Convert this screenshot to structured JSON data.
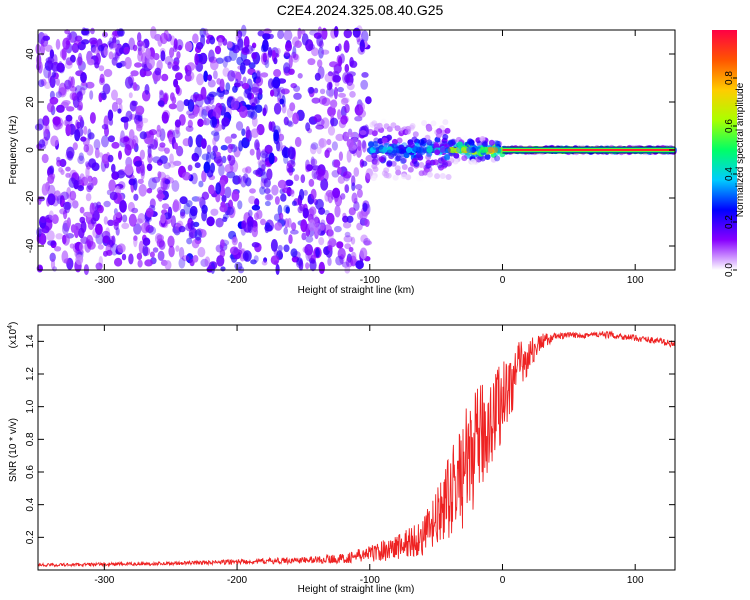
{
  "page": {
    "title": "C2E4.2024.325.08.40.G25"
  },
  "chart_data": [
    {
      "type": "heatmap",
      "title": "C2E4.2024.325.08.40.G25",
      "xlabel": "Height of straight line (km)",
      "ylabel": "Frequency (Hz)",
      "xlim": [
        -350,
        130
      ],
      "ylim": [
        -50,
        50
      ],
      "x_ticks": [
        -300,
        -200,
        -100,
        0,
        100
      ],
      "y_ticks": [
        -40,
        -20,
        0,
        20,
        40
      ],
      "colorbar": {
        "label": "Normalized spectral amplitude",
        "range": [
          0,
          1
        ],
        "ticks": [
          "0.0",
          "0.2",
          "0.4",
          "0.6",
          "0.8"
        ],
        "tick_values": [
          0.0,
          0.2,
          0.4,
          0.6,
          0.8
        ],
        "colors": [
          "#ffffff",
          "#8800ff",
          "#0000ff",
          "#00ccff",
          "#00ff66",
          "#aaff00",
          "#ffcc00",
          "#ff5500",
          "#ff0044"
        ]
      },
      "band": {
        "x_ranges": [
          [
            -350,
            -240
          ],
          [
            -240,
            -150
          ],
          [
            -150,
            -100
          ],
          [
            -100,
            -40
          ],
          [
            -40,
            0
          ],
          [
            0,
            130
          ]
        ],
        "freq_halfwidth_hz": [
          50,
          50,
          50,
          12,
          5,
          1
        ],
        "peak_amplitude": [
          0.2,
          0.25,
          0.2,
          0.45,
          0.85,
          0.95
        ]
      },
      "line": {
        "frequency_hz": 0,
        "x_range": [
          0,
          130
        ]
      }
    },
    {
      "type": "line",
      "xlabel": "Height of straight line (km)",
      "ylabel": "SNR (10 * v/v)",
      "y_scale_label": "(x10",
      "y_scale_exp": "4",
      "y_scale_close": ")",
      "xlim": [
        -350,
        130
      ],
      "ylim": [
        0,
        1.5
      ],
      "x_ticks": [
        -300,
        -200,
        -100,
        0,
        100
      ],
      "y_ticks": [
        "0.2",
        "0.4",
        "0.6",
        "0.8",
        "1.0",
        "1.2",
        "1.4"
      ],
      "y_tick_values": [
        0.2,
        0.4,
        0.6,
        0.8,
        1.0,
        1.2,
        1.4
      ],
      "series": [
        {
          "color": "#ee2222",
          "x": [
            -350,
            -300,
            -250,
            -200,
            -150,
            -120,
            -100,
            -80,
            -60,
            -50,
            -40,
            -30,
            -20,
            -10,
            0,
            10,
            20,
            30,
            40,
            60,
            80,
            100,
            120,
            130
          ],
          "y": [
            0.03,
            0.035,
            0.04,
            0.05,
            0.06,
            0.07,
            0.1,
            0.14,
            0.2,
            0.3,
            0.45,
            0.6,
            0.75,
            0.9,
            1.05,
            1.2,
            1.32,
            1.4,
            1.43,
            1.44,
            1.44,
            1.42,
            1.4,
            1.38
          ],
          "noise": [
            0.01,
            0.01,
            0.01,
            0.015,
            0.02,
            0.03,
            0.05,
            0.08,
            0.12,
            0.18,
            0.25,
            0.35,
            0.35,
            0.3,
            0.25,
            0.2,
            0.1,
            0.05,
            0.02,
            0.02,
            0.02,
            0.02,
            0.02,
            0.02
          ]
        }
      ]
    }
  ]
}
